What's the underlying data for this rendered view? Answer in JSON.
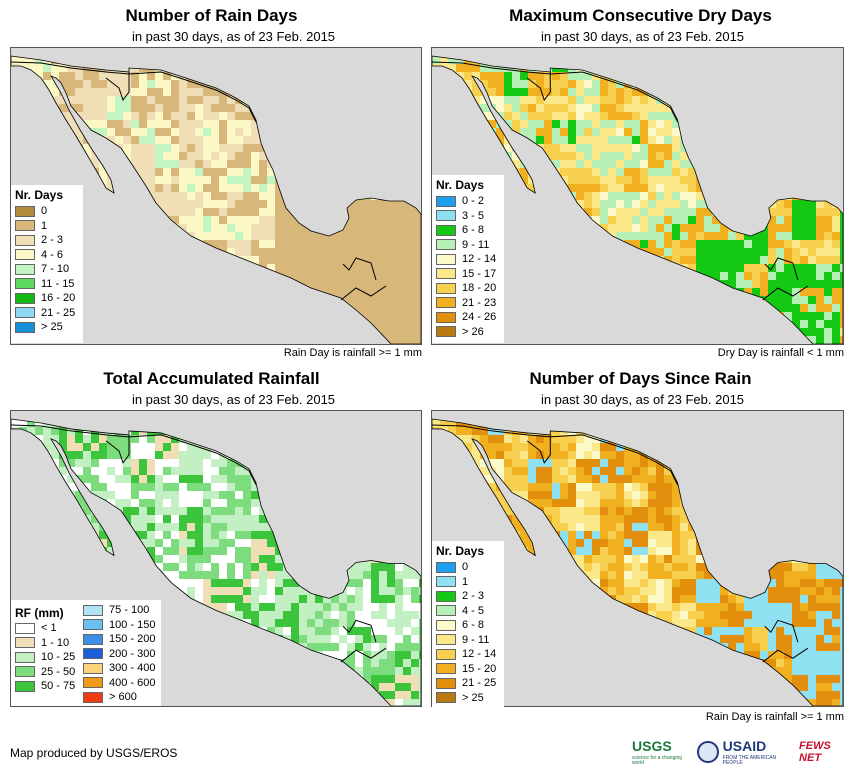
{
  "panels": [
    {
      "title": "Number of Rain Days",
      "subtitle": "in past 30 days, as of 23 Feb. 2015",
      "note": "Rain Day is rainfall >= 1 mm",
      "legend": {
        "title": "Nr. Days",
        "items": [
          {
            "label": "0",
            "color": "#b3893a"
          },
          {
            "label": "1",
            "color": "#d8b77a"
          },
          {
            "label": "2 - 3",
            "color": "#f0dfb6"
          },
          {
            "label": "4 - 6",
            "color": "#fbf8c5"
          },
          {
            "label": "7 - 10",
            "color": "#c3f5c3"
          },
          {
            "label": "11 - 15",
            "color": "#5fd95f"
          },
          {
            "label": "16 - 20",
            "color": "#14b814"
          },
          {
            "label": "21 - 25",
            "color": "#8fd8f2"
          },
          {
            "label": "> 25",
            "color": "#148fd8"
          }
        ]
      }
    },
    {
      "title": "Maximum Consecutive Dry Days",
      "subtitle": "in past 30 days, as of 23 Feb. 2015",
      "note": "Dry Day is rainfall < 1 mm",
      "legend": {
        "title": "Nr. Days",
        "items": [
          {
            "label": "0 - 2",
            "color": "#1e9ff0"
          },
          {
            "label": "3 - 5",
            "color": "#8fe0f0"
          },
          {
            "label": "6 - 8",
            "color": "#14c814"
          },
          {
            "label": "9 - 11",
            "color": "#b6f0b6"
          },
          {
            "label": "12 - 14",
            "color": "#fbfac8"
          },
          {
            "label": "15 - 17",
            "color": "#fbe88a"
          },
          {
            "label": "18 - 20",
            "color": "#f8d050"
          },
          {
            "label": "21 - 23",
            "color": "#f0b020"
          },
          {
            "label": "24 - 26",
            "color": "#e38f0e"
          },
          {
            "label": "> 26",
            "color": "#b87a10"
          }
        ]
      }
    },
    {
      "title": "Total Accumulated Rainfall",
      "subtitle": "in past 30 days, as of 23 Feb. 2015",
      "note": "",
      "legend": {
        "title": "RF (mm)",
        "items": [
          {
            "label": "< 1",
            "color": "#ffffff"
          },
          {
            "label": "1 - 10",
            "color": "#f0dfb6"
          },
          {
            "label": "10 - 25",
            "color": "#c3f0c3"
          },
          {
            "label": "25 - 50",
            "color": "#7ddc7d"
          },
          {
            "label": "50 - 75",
            "color": "#3cc43c"
          }
        ],
        "items2": [
          {
            "label": "75 - 100",
            "color": "#b0e4f5"
          },
          {
            "label": "100 - 150",
            "color": "#6cc0ef"
          },
          {
            "label": "150 - 200",
            "color": "#3c8ee6"
          },
          {
            "label": "200 - 300",
            "color": "#1c5ed8"
          },
          {
            "label": "300 - 400",
            "color": "#fbd37a"
          },
          {
            "label": "400 - 600",
            "color": "#f09a18"
          },
          {
            "label": "> 600",
            "color": "#f03c14"
          }
        ]
      }
    },
    {
      "title": "Number of Days Since Rain",
      "subtitle": "in past 30 days, as of 23 Feb. 2015",
      "note": "Rain Day is rainfall >= 1 mm",
      "legend": {
        "title": "Nr. Days",
        "items": [
          {
            "label": "0",
            "color": "#1e9ff0"
          },
          {
            "label": "1",
            "color": "#8fe0f0"
          },
          {
            "label": "2 - 3",
            "color": "#14c814"
          },
          {
            "label": "4 - 5",
            "color": "#b6f0b6"
          },
          {
            "label": "6 - 8",
            "color": "#fbfac8"
          },
          {
            "label": "9 - 11",
            "color": "#fbe88a"
          },
          {
            "label": "12 - 14",
            "color": "#f8d050"
          },
          {
            "label": "15 - 20",
            "color": "#f0b020"
          },
          {
            "label": "21 - 25",
            "color": "#e38f0e"
          },
          {
            "label": "> 25",
            "color": "#b87a10"
          }
        ]
      }
    }
  ],
  "footer": {
    "credit": "Map produced by USGS/EROS",
    "logos": {
      "usgs": "USGS",
      "usgs_tagline": "science for a changing world",
      "usaid": "USAID",
      "usaid_tagline": "FROM THE AMERICAN PEOPLE",
      "fews": "FEWS NET"
    }
  },
  "colors": {
    "ocean": "#d9d9d9",
    "border": "#000000"
  }
}
